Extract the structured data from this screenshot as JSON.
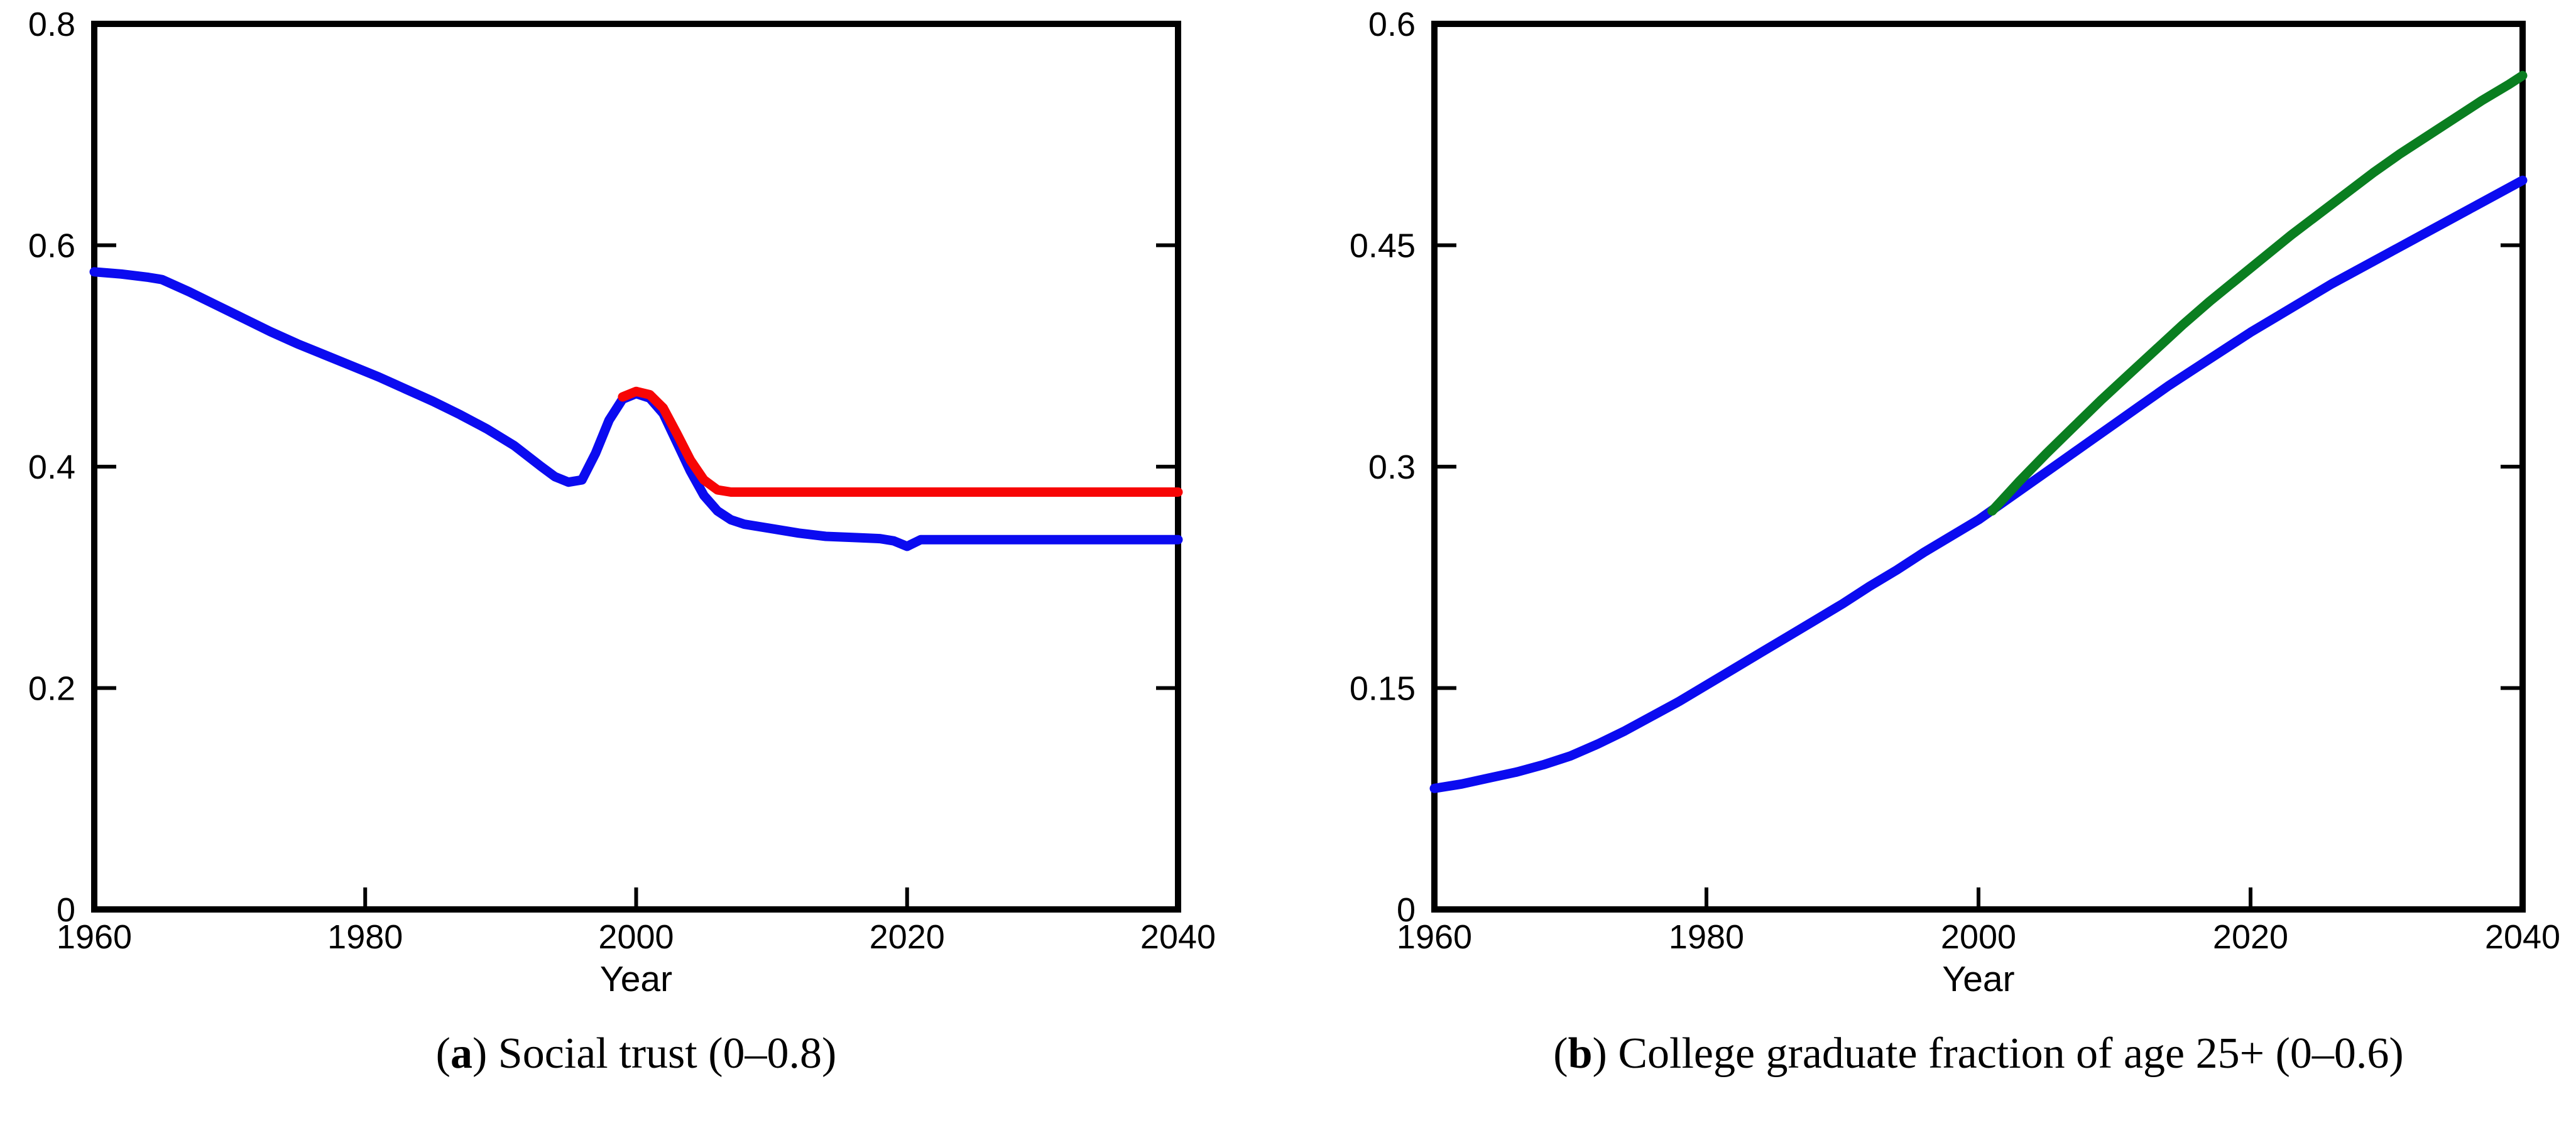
{
  "page": {
    "background_color": "#ffffff",
    "axis_color": "#000000"
  },
  "chart_data": [
    {
      "type": "line",
      "panel": "a",
      "caption": {
        "open": "(",
        "letter": "a",
        "close": ")",
        "text": " Social trust (0–0.8)"
      },
      "xlabel": "Year",
      "xlim": [
        1960,
        2040
      ],
      "ylim": [
        0,
        0.8
      ],
      "xticks": [
        "1960",
        "1980",
        "2000",
        "2020",
        "2040"
      ],
      "yticks": [
        {
          "v": 0,
          "label": "0"
        },
        {
          "v": 0.2,
          "label": "0.2"
        },
        {
          "v": 0.4,
          "label": "0.4"
        },
        {
          "v": 0.6,
          "label": "0.6"
        },
        {
          "v": 0.8,
          "label": "0.8"
        }
      ],
      "grid": false,
      "legend": null,
      "series": [
        {
          "name": "blue",
          "color": "#0b0bf0",
          "points": [
            [
              1960,
              0.576
            ],
            [
              1962,
              0.574
            ],
            [
              1964,
              0.571
            ],
            [
              1965,
              0.569
            ],
            [
              1967,
              0.558
            ],
            [
              1969,
              0.546
            ],
            [
              1971,
              0.534
            ],
            [
              1973,
              0.522
            ],
            [
              1975,
              0.511
            ],
            [
              1977,
              0.501
            ],
            [
              1979,
              0.491
            ],
            [
              1981,
              0.481
            ],
            [
              1983,
              0.47
            ],
            [
              1985,
              0.459
            ],
            [
              1987,
              0.447
            ],
            [
              1989,
              0.434
            ],
            [
              1991,
              0.419
            ],
            [
              1993,
              0.4
            ],
            [
              1994,
              0.391
            ],
            [
              1995,
              0.386
            ],
            [
              1996,
              0.388
            ],
            [
              1997,
              0.412
            ],
            [
              1998,
              0.442
            ],
            [
              1999,
              0.461
            ],
            [
              2000,
              0.466
            ],
            [
              2001,
              0.462
            ],
            [
              2002,
              0.448
            ],
            [
              2003,
              0.422
            ],
            [
              2004,
              0.396
            ],
            [
              2005,
              0.374
            ],
            [
              2006,
              0.36
            ],
            [
              2007,
              0.352
            ],
            [
              2008,
              0.348
            ],
            [
              2010,
              0.344
            ],
            [
              2012,
              0.34
            ],
            [
              2014,
              0.337
            ],
            [
              2016,
              0.336
            ],
            [
              2018,
              0.335
            ],
            [
              2019,
              0.333
            ],
            [
              2020,
              0.328
            ],
            [
              2021,
              0.334
            ],
            [
              2024,
              0.334
            ],
            [
              2028,
              0.334
            ],
            [
              2032,
              0.334
            ],
            [
              2036,
              0.334
            ],
            [
              2040,
              0.334
            ]
          ]
        },
        {
          "name": "red",
          "color": "#f70505",
          "points": [
            [
              1999,
              0.463
            ],
            [
              2000,
              0.468
            ],
            [
              2001,
              0.465
            ],
            [
              2002,
              0.453
            ],
            [
              2003,
              0.43
            ],
            [
              2004,
              0.406
            ],
            [
              2005,
              0.388
            ],
            [
              2006,
              0.379
            ],
            [
              2007,
              0.377
            ],
            [
              2010,
              0.377
            ],
            [
              2015,
              0.377
            ],
            [
              2020,
              0.377
            ],
            [
              2025,
              0.377
            ],
            [
              2030,
              0.377
            ],
            [
              2035,
              0.377
            ],
            [
              2040,
              0.377
            ]
          ]
        }
      ]
    },
    {
      "type": "line",
      "panel": "b",
      "caption": {
        "open": "(",
        "letter": "b",
        "close": ")",
        "text": " College graduate fraction of age 25+ (0–0.6)"
      },
      "xlabel": "Year",
      "xlim": [
        1960,
        2040
      ],
      "ylim": [
        0,
        0.6
      ],
      "xticks": [
        "1960",
        "1980",
        "2000",
        "2020",
        "2040"
      ],
      "yticks": [
        {
          "v": 0,
          "label": "0"
        },
        {
          "v": 0.15,
          "label": "0.15"
        },
        {
          "v": 0.3,
          "label": "0.3"
        },
        {
          "v": 0.45,
          "label": "0.45"
        },
        {
          "v": 0.6,
          "label": "0.6"
        }
      ],
      "grid": false,
      "legend": null,
      "series": [
        {
          "name": "blue",
          "color": "#0b0bf0",
          "points": [
            [
              1960,
              0.082
            ],
            [
              1962,
              0.085
            ],
            [
              1964,
              0.089
            ],
            [
              1966,
              0.093
            ],
            [
              1968,
              0.098
            ],
            [
              1970,
              0.104
            ],
            [
              1972,
              0.112
            ],
            [
              1974,
              0.121
            ],
            [
              1976,
              0.131
            ],
            [
              1978,
              0.141
            ],
            [
              1980,
              0.152
            ],
            [
              1982,
              0.163
            ],
            [
              1984,
              0.174
            ],
            [
              1986,
              0.185
            ],
            [
              1988,
              0.196
            ],
            [
              1990,
              0.207
            ],
            [
              1992,
              0.219
            ],
            [
              1994,
              0.23
            ],
            [
              1996,
              0.242
            ],
            [
              1998,
              0.253
            ],
            [
              2000,
              0.264
            ],
            [
              2002,
              0.277
            ],
            [
              2004,
              0.29
            ],
            [
              2006,
              0.303
            ],
            [
              2008,
              0.316
            ],
            [
              2010,
              0.329
            ],
            [
              2012,
              0.342
            ],
            [
              2014,
              0.355
            ],
            [
              2016,
              0.367
            ],
            [
              2018,
              0.379
            ],
            [
              2020,
              0.391
            ],
            [
              2022,
              0.402
            ],
            [
              2024,
              0.413
            ],
            [
              2026,
              0.424
            ],
            [
              2028,
              0.434
            ],
            [
              2030,
              0.444
            ],
            [
              2032,
              0.454
            ],
            [
              2034,
              0.464
            ],
            [
              2036,
              0.474
            ],
            [
              2038,
              0.484
            ],
            [
              2040,
              0.494
            ]
          ]
        },
        {
          "name": "green",
          "color": "#0a7e20",
          "points": [
            [
              2001,
              0.27
            ],
            [
              2003,
              0.29
            ],
            [
              2005,
              0.309
            ],
            [
              2007,
              0.327
            ],
            [
              2009,
              0.345
            ],
            [
              2011,
              0.362
            ],
            [
              2013,
              0.379
            ],
            [
              2015,
              0.396
            ],
            [
              2017,
              0.412
            ],
            [
              2019,
              0.427
            ],
            [
              2021,
              0.442
            ],
            [
              2023,
              0.457
            ],
            [
              2025,
              0.471
            ],
            [
              2027,
              0.485
            ],
            [
              2029,
              0.499
            ],
            [
              2031,
              0.512
            ],
            [
              2033,
              0.524
            ],
            [
              2035,
              0.536
            ],
            [
              2037,
              0.548
            ],
            [
              2039,
              0.559
            ],
            [
              2040,
              0.565
            ]
          ]
        }
      ]
    }
  ]
}
